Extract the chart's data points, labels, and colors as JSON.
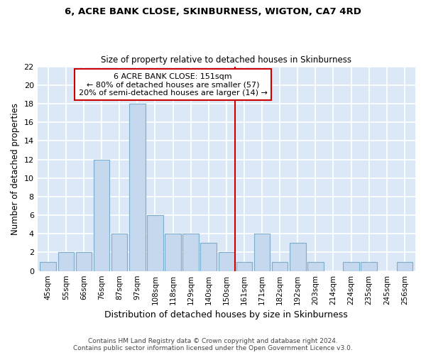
{
  "title1": "6, ACRE BANK CLOSE, SKINBURNESS, WIGTON, CA7 4RD",
  "title2": "Size of property relative to detached houses in Skinburness",
  "xlabel": "Distribution of detached houses by size in Skinburness",
  "ylabel": "Number of detached properties",
  "categories": [
    "45sqm",
    "55sqm",
    "66sqm",
    "76sqm",
    "87sqm",
    "97sqm",
    "108sqm",
    "118sqm",
    "129sqm",
    "140sqm",
    "150sqm",
    "161sqm",
    "171sqm",
    "182sqm",
    "192sqm",
    "203sqm",
    "214sqm",
    "224sqm",
    "235sqm",
    "245sqm",
    "256sqm"
  ],
  "values": [
    1,
    2,
    2,
    12,
    4,
    18,
    6,
    4,
    4,
    3,
    2,
    1,
    4,
    1,
    3,
    1,
    0,
    1,
    1,
    0,
    1
  ],
  "bar_color": "#c5d8ed",
  "bar_edge_color": "#7aaecf",
  "bar_width": 0.9,
  "vline_x_index": 10,
  "vline_color": "#cc0000",
  "annotation_text": "6 ACRE BANK CLOSE: 151sqm\n← 80% of detached houses are smaller (57)\n20% of semi-detached houses are larger (14) →",
  "annotation_box_color": "#ffffff",
  "annotation_box_edge": "#cc0000",
  "ylim": [
    0,
    22
  ],
  "yticks": [
    0,
    2,
    4,
    6,
    8,
    10,
    12,
    14,
    16,
    18,
    20,
    22
  ],
  "plot_bg_color": "#dce8f5",
  "fig_bg_color": "#ffffff",
  "grid_color": "#ffffff",
  "footer": "Contains HM Land Registry data © Crown copyright and database right 2024.\nContains public sector information licensed under the Open Government Licence v3.0."
}
